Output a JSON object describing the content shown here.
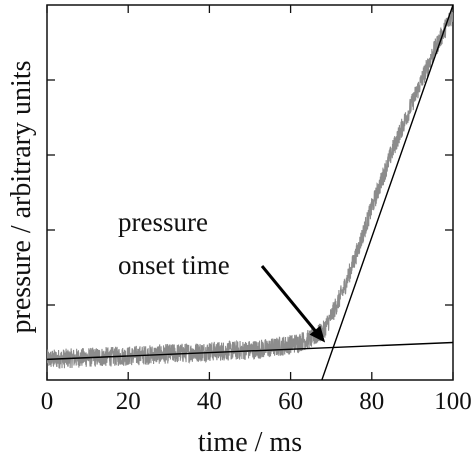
{
  "chart_data": {
    "type": "line",
    "xlabel": "time / ms",
    "ylabel": "pressure / arbitrary units",
    "xlim": [
      0,
      100
    ],
    "ylim": [
      0,
      1
    ],
    "x_ticks": [
      0,
      20,
      40,
      60,
      80,
      100
    ],
    "y_tick_labels_shown": false,
    "grid": false,
    "series": [
      {
        "style": "noisy gray signal",
        "color": "#8c8c8c",
        "noise": 0.012,
        "points": [
          [
            0,
            0.055
          ],
          [
            10,
            0.06
          ],
          [
            20,
            0.064
          ],
          [
            30,
            0.07
          ],
          [
            40,
            0.076
          ],
          [
            50,
            0.08
          ],
          [
            55,
            0.085
          ],
          [
            60,
            0.095
          ],
          [
            65,
            0.11
          ],
          [
            68,
            0.13
          ],
          [
            70,
            0.17
          ],
          [
            73,
            0.24
          ],
          [
            76,
            0.33
          ],
          [
            80,
            0.46
          ],
          [
            85,
            0.61
          ],
          [
            90,
            0.74
          ],
          [
            95,
            0.87
          ],
          [
            100,
            0.98
          ]
        ]
      },
      {
        "style": "baseline fit line",
        "color": "#000000",
        "points": [
          [
            0,
            0.055
          ],
          [
            100,
            0.1
          ]
        ]
      },
      {
        "style": "rising fit line",
        "color": "#000000",
        "points": [
          [
            67.7,
            0.0
          ],
          [
            100,
            1.0
          ]
        ]
      }
    ],
    "annotations": [
      {
        "lines": [
          "pressure",
          "onset time"
        ],
        "arrow_to": [
          68.5,
          0.1
        ]
      }
    ]
  }
}
